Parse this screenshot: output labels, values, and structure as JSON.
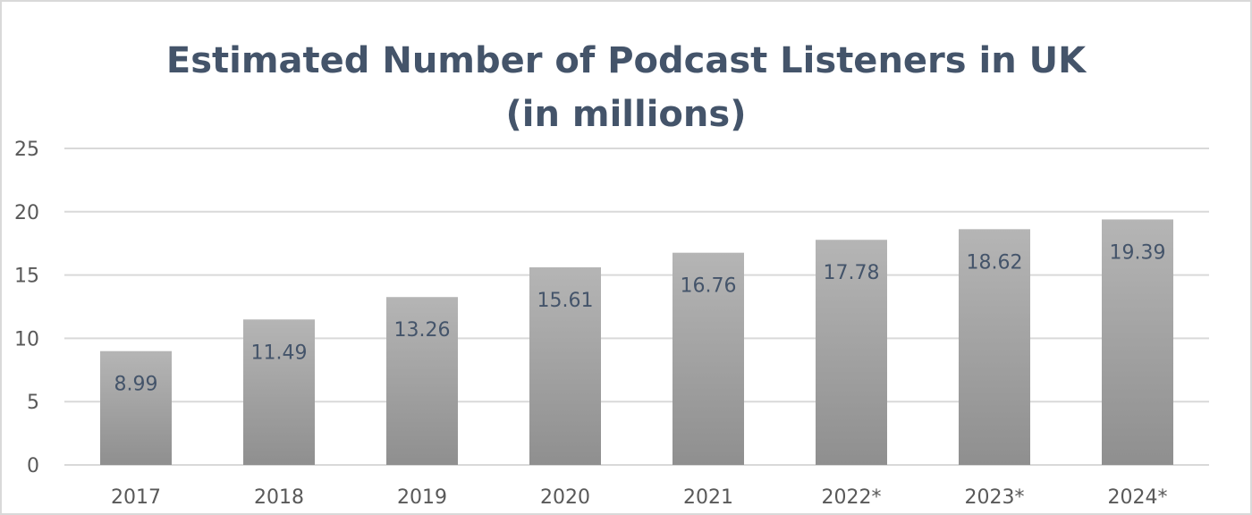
{
  "chart_data": {
    "type": "bar",
    "title": "Estimated Number of Podcast Listeners in UK (in millions)",
    "xlabel": "",
    "ylabel": "",
    "categories": [
      "2017",
      "2018",
      "2019",
      "2020",
      "2021",
      "2022*",
      "2023*",
      "2024*"
    ],
    "values": [
      8.99,
      11.49,
      13.26,
      15.61,
      16.76,
      17.78,
      18.62,
      19.39
    ],
    "data_labels": [
      "8.99",
      "11.49",
      "13.26",
      "15.61",
      "16.76",
      "17.78",
      "18.62",
      "19.39"
    ],
    "ylim": [
      0,
      25
    ],
    "yticks": [
      0,
      5,
      10,
      15,
      20,
      25
    ],
    "grid": true,
    "legend": "none",
    "colors": {
      "bar_top": "#b5b5b5",
      "bar_bottom": "#8f8f8f",
      "grid": "#d9d9d9",
      "title": "#44546a",
      "tick_text": "#595959",
      "data_label": "#44546a"
    }
  }
}
